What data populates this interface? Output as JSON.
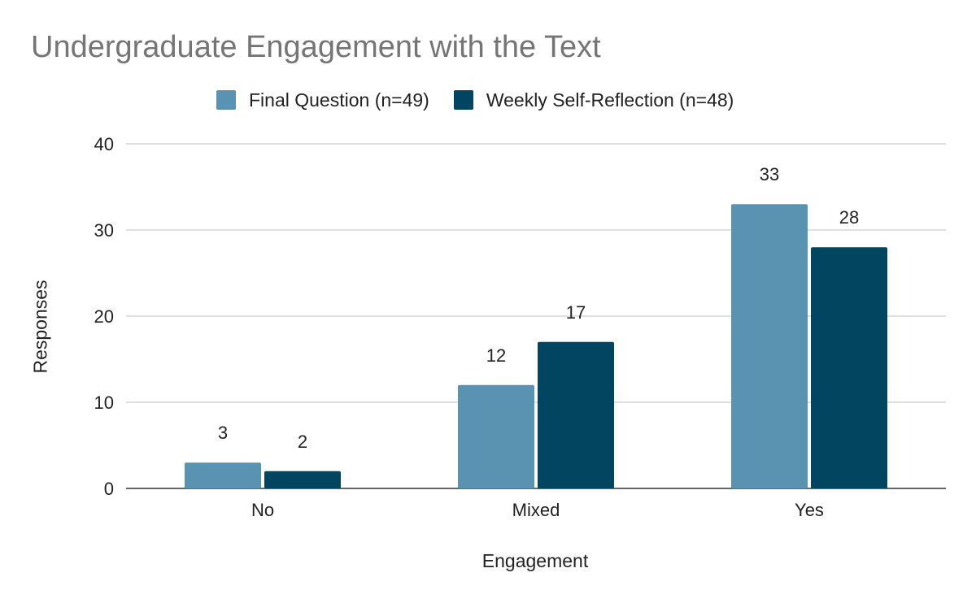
{
  "chart_data": {
    "type": "bar",
    "title": "Undergraduate Engagement with the Text",
    "xlabel": "Engagement",
    "ylabel": "Responses",
    "categories": [
      "No",
      "Mixed",
      "Yes"
    ],
    "series": [
      {
        "name": "Final Question (n=49)",
        "values": [
          3,
          12,
          33
        ],
        "color": "#5a93b1"
      },
      {
        "name": "Weekly Self-Reflection (n=48)",
        "values": [
          2,
          17,
          28
        ],
        "color": "#014561"
      }
    ],
    "ylim": [
      0,
      40
    ],
    "yticks": [
      "0",
      "10",
      "20",
      "30",
      "40"
    ],
    "grid": true,
    "legend": "top",
    "data_labels": true
  }
}
